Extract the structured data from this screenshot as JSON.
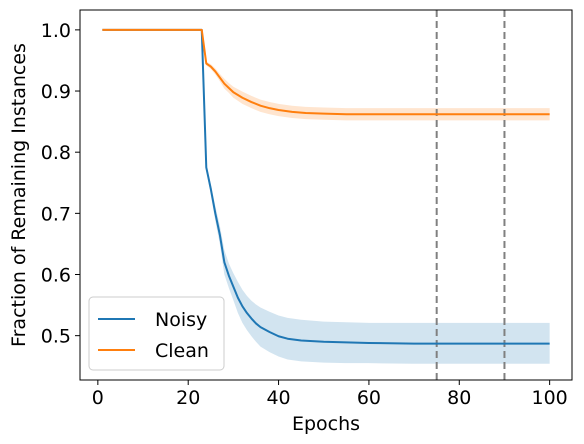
{
  "chart_data": {
    "type": "line",
    "title": "",
    "xlabel": "Epochs",
    "ylabel": "Fraction of Remaining Instances",
    "xlim": [
      -3.95,
      104.95
    ],
    "ylim": [
      0.4275,
      1.0325
    ],
    "x_ticks": [
      0,
      20,
      40,
      60,
      80,
      100
    ],
    "y_ticks": [
      0.5,
      0.6,
      0.7,
      0.8,
      0.9,
      1.0
    ],
    "x_tick_labels": [
      "0",
      "20",
      "40",
      "60",
      "80",
      "100"
    ],
    "y_tick_labels": [
      "0.5",
      "0.6",
      "0.7",
      "0.8",
      "0.9",
      "1.0"
    ],
    "grid": false,
    "legend_position": "lower-left",
    "vertical_lines": [
      {
        "x": 75,
        "style": "dashed",
        "color": "#808080"
      },
      {
        "x": 90,
        "style": "dashed",
        "color": "#808080"
      }
    ],
    "series": [
      {
        "name": "Noisy",
        "color": "#1f77b4",
        "band_color": "#1f77b4",
        "band_opacity": 0.2,
        "x": [
          1,
          23,
          24,
          25,
          26,
          27,
          28,
          29,
          30,
          31,
          32,
          33,
          34,
          35,
          36,
          38,
          40,
          42,
          45,
          50,
          55,
          60,
          70,
          80,
          90,
          100
        ],
        "y": [
          1.0,
          1.0,
          0.775,
          0.74,
          0.7,
          0.665,
          0.62,
          0.598,
          0.58,
          0.562,
          0.548,
          0.537,
          0.528,
          0.52,
          0.514,
          0.506,
          0.499,
          0.495,
          0.492,
          0.49,
          0.489,
          0.488,
          0.487,
          0.487,
          0.487,
          0.487
        ],
        "upper": [
          1.0,
          1.0,
          0.78,
          0.748,
          0.712,
          0.68,
          0.64,
          0.618,
          0.602,
          0.588,
          0.575,
          0.565,
          0.557,
          0.551,
          0.546,
          0.539,
          0.533,
          0.529,
          0.526,
          0.523,
          0.522,
          0.521,
          0.521,
          0.521,
          0.521,
          0.521
        ],
        "lower": [
          1.0,
          1.0,
          0.77,
          0.73,
          0.688,
          0.65,
          0.6,
          0.578,
          0.558,
          0.537,
          0.521,
          0.509,
          0.499,
          0.49,
          0.482,
          0.473,
          0.466,
          0.461,
          0.458,
          0.456,
          0.455,
          0.455,
          0.454,
          0.454,
          0.454,
          0.454
        ]
      },
      {
        "name": "Clean",
        "color": "#ff7f0e",
        "band_color": "#ff7f0e",
        "band_opacity": 0.2,
        "x": [
          1,
          23,
          24,
          25,
          26,
          27,
          28,
          29,
          30,
          32,
          34,
          36,
          38,
          40,
          43,
          46,
          50,
          55,
          60,
          70,
          80,
          90,
          100
        ],
        "y": [
          1.0,
          1.0,
          0.945,
          0.94,
          0.932,
          0.922,
          0.912,
          0.905,
          0.898,
          0.889,
          0.882,
          0.876,
          0.872,
          0.869,
          0.866,
          0.864,
          0.863,
          0.862,
          0.862,
          0.862,
          0.862,
          0.862,
          0.862
        ],
        "upper": [
          1.0,
          1.0,
          0.948,
          0.944,
          0.937,
          0.928,
          0.92,
          0.913,
          0.907,
          0.899,
          0.892,
          0.886,
          0.882,
          0.879,
          0.876,
          0.874,
          0.873,
          0.872,
          0.872,
          0.872,
          0.872,
          0.872,
          0.872
        ],
        "lower": [
          1.0,
          1.0,
          0.942,
          0.936,
          0.927,
          0.916,
          0.904,
          0.897,
          0.889,
          0.879,
          0.872,
          0.866,
          0.862,
          0.859,
          0.856,
          0.854,
          0.853,
          0.852,
          0.852,
          0.852,
          0.852,
          0.852,
          0.852
        ]
      }
    ]
  }
}
